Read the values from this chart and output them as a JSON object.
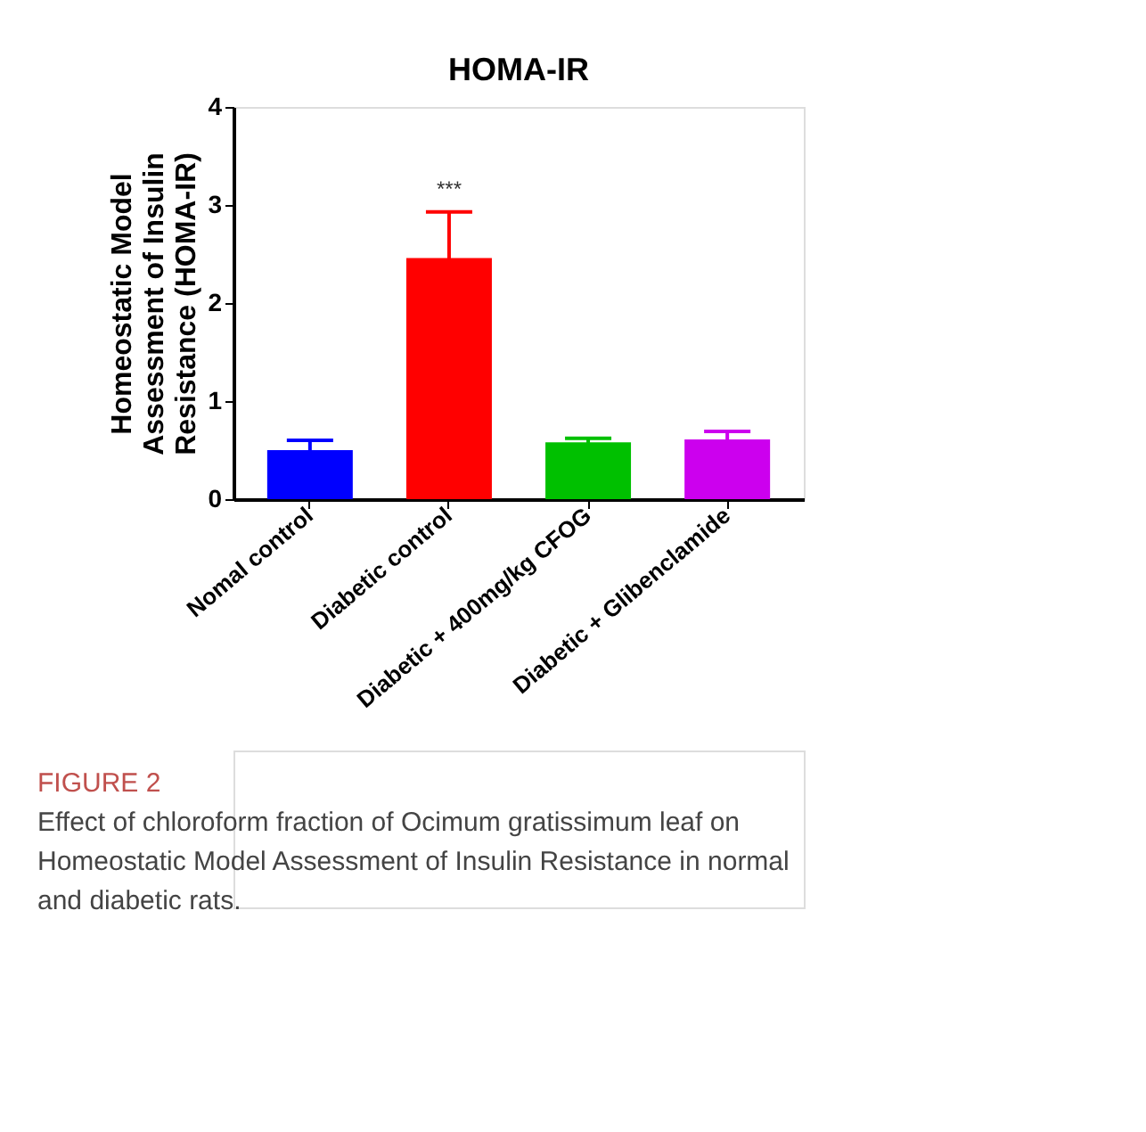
{
  "chart_data": {
    "type": "bar",
    "title": "HOMA-IR",
    "ylabel": "Homeostatic Model\nAssessment of Insulin\nResistance (HOMA-IR)",
    "categories": [
      "Nomal control",
      "Diabetic control",
      "Diabetic + 400mg/kg CFOG",
      "Diabetic + Glibenclamide"
    ],
    "values": [
      0.5,
      2.46,
      0.58,
      0.61
    ],
    "errors": [
      0.1,
      0.47,
      0.04,
      0.08
    ],
    "colors": [
      "#0000ff",
      "#ff0000",
      "#00c000",
      "#cc00ee"
    ],
    "ylim": [
      0,
      4
    ],
    "yticks": [
      0,
      1,
      2,
      3,
      4
    ],
    "grid": false,
    "legend": false,
    "annotations": [
      {
        "text": "***",
        "x": "Diabetic control",
        "y": 2.93
      },
      "FIGURE 2",
      "Effect of chloroform fraction of Ocimum gratissimum leaf on Homeostatic Model Assessment of Insulin Resistance in normal and diabetic rats."
    ]
  }
}
